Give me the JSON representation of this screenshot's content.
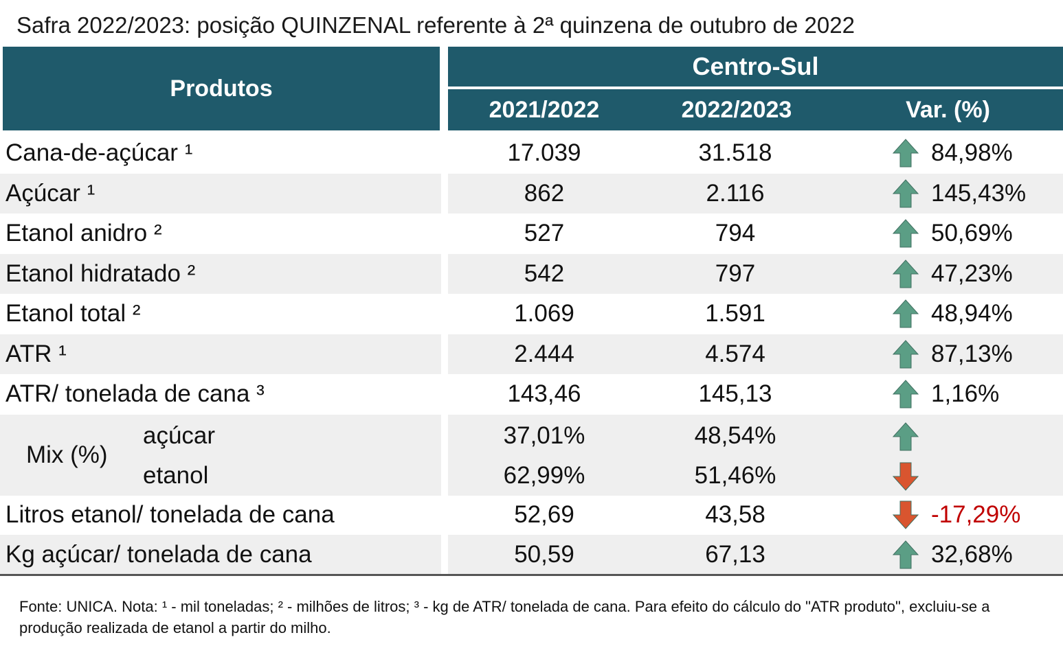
{
  "title": "Safra 2022/2023: posição QUINZENAL referente à 2ª quinzena de outubro de 2022",
  "header": {
    "produtos": "Produtos",
    "region": "Centro-Sul",
    "col_a": "2021/2022",
    "col_b": "2022/2023",
    "col_var": "Var. (%)"
  },
  "colors": {
    "header_bg": "#1f5a6b",
    "arrow_up": "#5b9e85",
    "arrow_down": "#d9552f",
    "negative_text": "#c00000"
  },
  "rows": [
    {
      "label": "Cana-de-açúcar ¹",
      "a": "17.039",
      "b": "31.518",
      "var": "84,98%",
      "dir": "up"
    },
    {
      "label": "Açúcar ¹",
      "a": "862",
      "b": "2.116",
      "var": "145,43%",
      "dir": "up"
    },
    {
      "label": "Etanol anidro ²",
      "a": "527",
      "b": "794",
      "var": "50,69%",
      "dir": "up"
    },
    {
      "label": "Etanol hidratado ²",
      "a": "542",
      "b": "797",
      "var": "47,23%",
      "dir": "up"
    },
    {
      "label": "Etanol total ²",
      "a": "1.069",
      "b": "1.591",
      "var": "48,94%",
      "dir": "up"
    },
    {
      "label": "ATR ¹",
      "a": "2.444",
      "b": "4.574",
      "var": "87,13%",
      "dir": "up"
    },
    {
      "label": "ATR/ tonelada de cana ³",
      "a": "143,46",
      "b": "145,13",
      "var": "1,16%",
      "dir": "up"
    }
  ],
  "mix": {
    "label": "Mix (%)",
    "acucar": {
      "label": "açúcar",
      "a": "37,01%",
      "b": "48,54%",
      "dir": "up"
    },
    "etanol": {
      "label": "etanol",
      "a": "62,99%",
      "b": "51,46%",
      "dir": "down"
    }
  },
  "rows2": [
    {
      "label": "Litros etanol/ tonelada de cana",
      "a": "52,69",
      "b": "43,58",
      "var": "-17,29%",
      "dir": "down"
    },
    {
      "label": "Kg açúcar/ tonelada de cana",
      "a": "50,59",
      "b": "67,13",
      "var": "32,68%",
      "dir": "up"
    }
  ],
  "footnote": "Fonte: UNICA. Nota: ¹ - mil toneladas; ² - milhões de litros; ³ - kg de ATR/ tonelada de cana. Para efeito do cálculo do \"ATR produto\", excluiu-se a produção realizada de etanol a partir do milho."
}
